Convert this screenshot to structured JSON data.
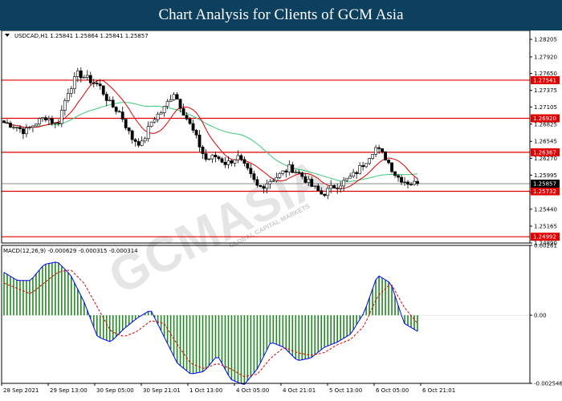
{
  "header": {
    "title": "Chart Analysis for Clients of GCM Asia"
  },
  "watermark": {
    "text": "GCMASIA",
    "subtext": "GLOBAL CAPITAL MARKETS"
  },
  "chart_data": {
    "type": "candlestick",
    "symbol_info": "USDCAD,H1  1.25841 1.25864 1.25841 1.25857",
    "price_axis": {
      "ylim": [
        1.2489,
        1.2835
      ],
      "ticks": [
        "1.28205",
        "1.27920",
        "1.27650",
        "1.27375",
        "1.27105",
        "1.26825",
        "1.26545",
        "1.26270",
        "1.25995",
        "1.25715",
        "1.25440",
        "1.25165",
        "1.24890"
      ]
    },
    "current_price": {
      "value": 1.25857,
      "label": "1.25857",
      "color": "#000000"
    },
    "levels": [
      {
        "value": 1.27541,
        "label": "1.27541",
        "color": "#e00000"
      },
      {
        "value": 1.2692,
        "label": "1.26920",
        "color": "#e00000"
      },
      {
        "value": 1.26367,
        "label": "1.26367",
        "color": "#e00000"
      },
      {
        "value": 1.25732,
        "label": "1.25732",
        "color": "#e00000"
      },
      {
        "value": 1.24992,
        "label": "1.24992",
        "color": "#e00000"
      }
    ],
    "x_labels": [
      "28 Sep 2021",
      "29 Sep 13:00",
      "30 Sep 05:00",
      "30 Sep 21:01",
      "1 Oct 13:00",
      "4 Oct 05:00",
      "4 Oct 21:01",
      "5 Oct 13:00",
      "6 Oct 05:00",
      "6 Oct 21:01"
    ],
    "price_anchors": [
      1.2685,
      1.268,
      1.267,
      1.2685,
      1.2695,
      1.268,
      1.2735,
      1.2765,
      1.2755,
      1.2745,
      1.2715,
      1.27,
      1.266,
      1.265,
      1.269,
      1.2705,
      1.2735,
      1.27,
      1.2665,
      1.2625,
      1.263,
      1.2618,
      1.263,
      1.2605,
      1.2578,
      1.259,
      1.26,
      1.2612,
      1.26,
      1.2582,
      1.2568,
      1.258,
      1.2588,
      1.26,
      1.262,
      1.2645,
      1.2628,
      1.2598,
      1.2588,
      1.2585
    ],
    "ma_red_color": "#e00000",
    "ma_green_color": "#3cc878",
    "macd": {
      "label": "MACD(12,26,9) -0.000629 -0.000315 -0.000314",
      "ylim": [
        -0.002546,
        0.00261
      ],
      "ticks": [
        "0.00261",
        "0.00",
        "-0.002546"
      ],
      "histogram_color": "#1f8a1f",
      "main_color": "#0000ff",
      "signal_color": "#e00000",
      "main_anchors": [
        0.0016,
        0.0013,
        0.0013,
        0.0019,
        0.002,
        0.0015,
        0.0005,
        -0.0008,
        -0.001,
        -0.0005,
        -0.0001,
        0.0002,
        -0.0008,
        -0.0018,
        -0.0022,
        -0.0021,
        -0.0015,
        -0.0024,
        -0.0026,
        -0.002,
        -0.001,
        -0.0012,
        -0.0017,
        -0.0016,
        -0.0012,
        -0.001,
        -0.0007,
        0.0001,
        0.0015,
        0.0012,
        -0.0003,
        -0.0006
      ],
      "signal_anchors": [
        0.0012,
        0.001,
        0.0008,
        0.0012,
        0.0016,
        0.0017,
        0.0012,
        0.0003,
        -0.0006,
        -0.0008,
        -0.0006,
        -0.0002,
        -0.0003,
        -0.0011,
        -0.0018,
        -0.002,
        -0.0018,
        -0.002,
        -0.0023,
        -0.0022,
        -0.0016,
        -0.0012,
        -0.0014,
        -0.0015,
        -0.0014,
        -0.0011,
        -0.0009,
        -0.0004,
        0.0007,
        0.0012,
        0.0003,
        -0.0003
      ]
    }
  }
}
